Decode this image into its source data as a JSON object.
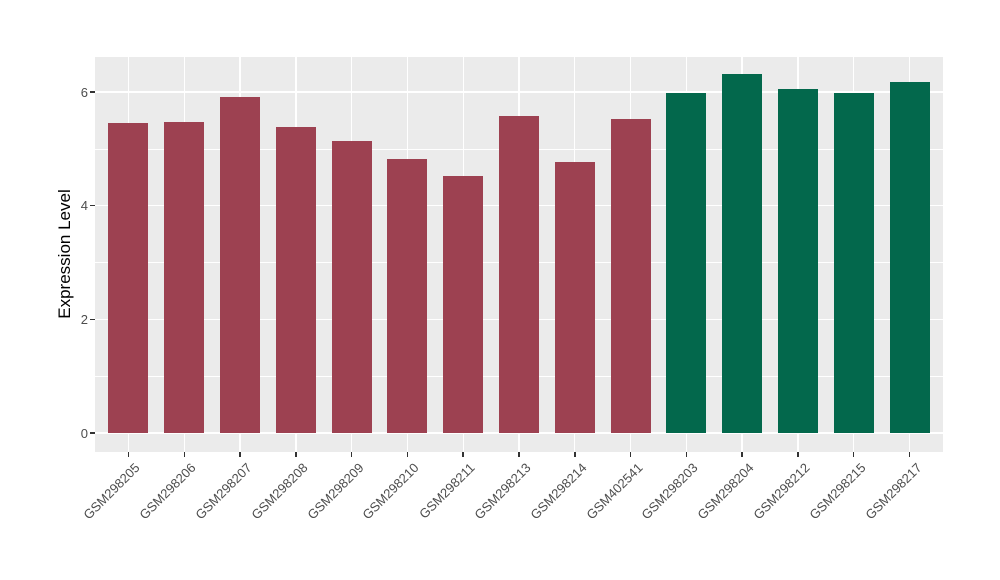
{
  "chart_data": {
    "type": "bar",
    "title": "",
    "ylabel": "Expression Level",
    "xlabel": "",
    "categories": [
      "GSM298205",
      "GSM298206",
      "GSM298207",
      "GSM298208",
      "GSM298209",
      "GSM298210",
      "GSM298211",
      "GSM298213",
      "GSM298214",
      "GSM402541",
      "GSM298203",
      "GSM298204",
      "GSM298212",
      "GSM298215",
      "GSM298217"
    ],
    "values": [
      5.45,
      5.48,
      5.91,
      5.38,
      5.13,
      4.83,
      4.52,
      5.58,
      4.77,
      5.53,
      5.99,
      6.31,
      6.06,
      5.98,
      6.17
    ],
    "bar_groups": [
      "group1",
      "group1",
      "group1",
      "group1",
      "group1",
      "group1",
      "group1",
      "group1",
      "group1",
      "group1",
      "group2",
      "group2",
      "group2",
      "group2",
      "group2"
    ],
    "group_colors": {
      "group1": "#9d4151",
      "group2": "#03684c"
    },
    "yticks": [
      "0",
      "2",
      "4",
      "6"
    ],
    "ytick_values": [
      0,
      2,
      4,
      6
    ],
    "yticks_minor": [
      1,
      3,
      5
    ],
    "ylim": [
      0,
      6.62
    ],
    "grid": "on",
    "legend": "none",
    "panel_background": "#ebebeb",
    "gridline_color": "#ffffff",
    "axis_text_color": "#4d4d4d",
    "axis_title_color": "#000000"
  }
}
